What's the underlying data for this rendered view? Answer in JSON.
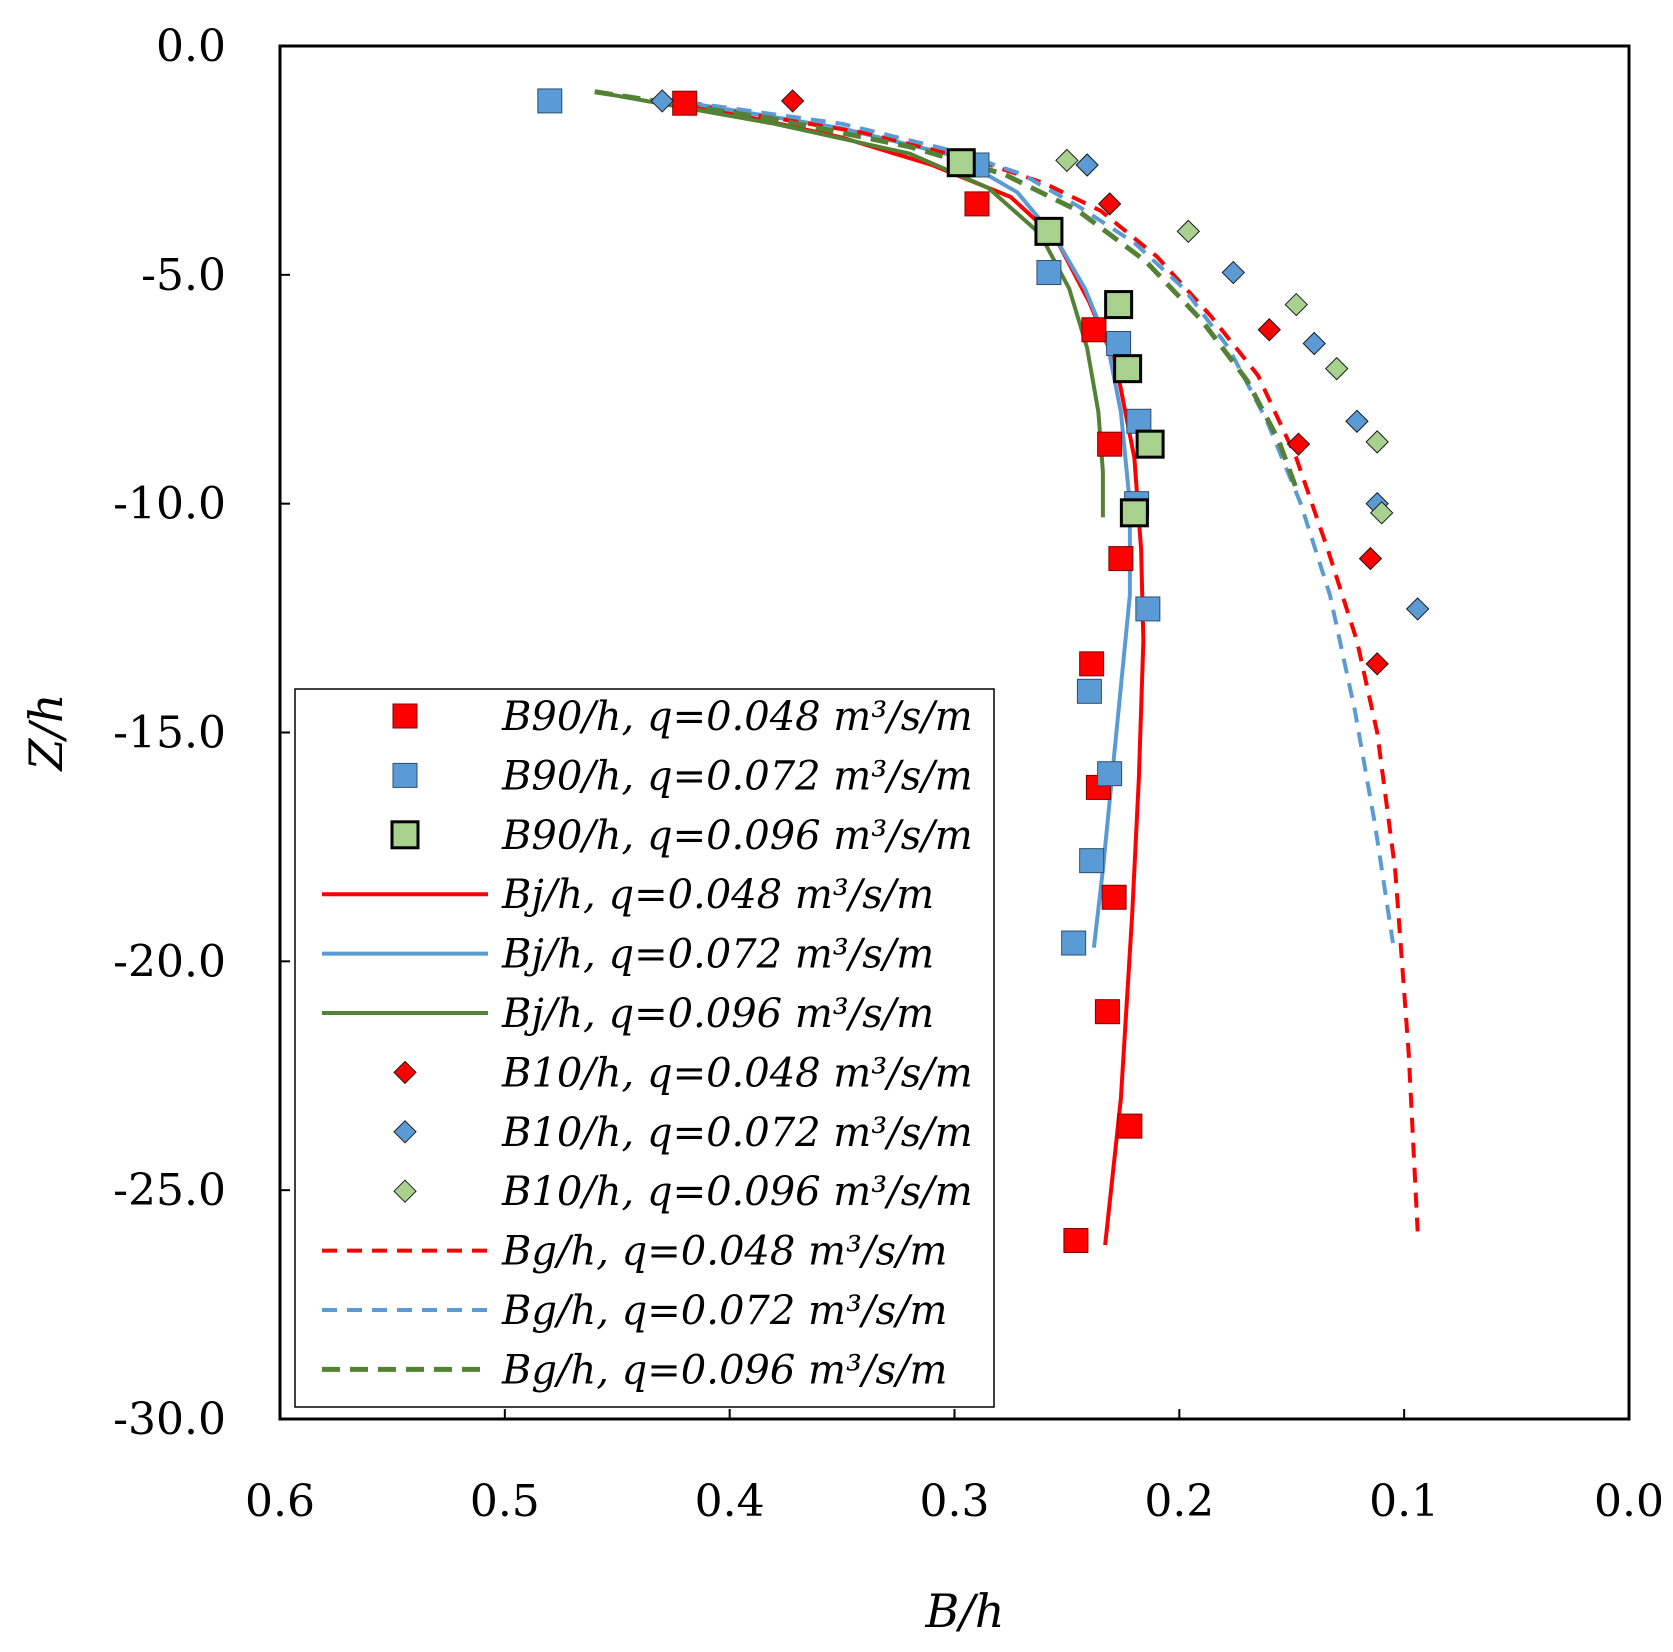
{
  "chart_data": {
    "type": "scatter",
    "title": "",
    "xlabel": "B/h",
    "ylabel": "Z/h",
    "xlim": [
      0.6,
      0.0
    ],
    "ylim": [
      -30.0,
      0.0
    ],
    "x_ticks": [
      "0.6",
      "0.5",
      "0.4",
      "0.3",
      "0.2",
      "0.1",
      "0.0"
    ],
    "y_ticks": [
      "0.0",
      "-5.0",
      "-10.0",
      "-15.0",
      "-20.0",
      "-25.0",
      "-30.0"
    ],
    "grid": false,
    "legend_position": "bottom-left",
    "colors": {
      "red": "#ff0000",
      "blue": "#5b9bd5",
      "green_marker": "#a9d18e",
      "green_line": "#548235",
      "axis": "#000000"
    },
    "series": [
      {
        "name": "B90/h, q=0.048 m³/s/m",
        "kind": "marker",
        "marker": "square",
        "color": "#ff0000",
        "stroke": "#7f0000",
        "x": [
          0.42,
          0.29,
          0.238,
          0.231,
          0.226,
          0.239,
          0.236,
          0.229,
          0.232,
          0.222,
          0.246
        ],
        "y": [
          -1.25,
          -3.45,
          -6.2,
          -8.7,
          -11.2,
          -13.5,
          -16.2,
          -18.6,
          -21.1,
          -23.6,
          -26.1
        ]
      },
      {
        "name": "B90/h, q=0.072 m³/s/m",
        "kind": "marker",
        "marker": "square",
        "color": "#5b9bd5",
        "stroke": "#2e4f6e",
        "x": [
          0.48,
          0.29,
          0.258,
          0.227,
          0.218,
          0.219,
          0.214,
          0.24,
          0.231,
          0.239,
          0.247
        ],
        "y": [
          -1.2,
          -2.6,
          -4.95,
          -6.5,
          -8.2,
          -10.0,
          -12.3,
          -14.1,
          -15.9,
          -17.8,
          -19.6
        ]
      },
      {
        "name": "B90/h, q=0.096 m³/s/m",
        "kind": "marker",
        "marker": "square-bold",
        "color": "#a9d18e",
        "stroke": "#000000",
        "x": [
          0.297,
          0.258,
          0.227,
          0.223,
          0.213,
          0.22
        ],
        "y": [
          -2.55,
          -4.05,
          -5.65,
          -7.05,
          -8.7,
          -10.2
        ]
      },
      {
        "name": "Bj/h, q=0.048 m³/s/m",
        "kind": "line",
        "style": "solid",
        "color": "#ff0000",
        "x": [
          0.42,
          0.35,
          0.31,
          0.275,
          0.255,
          0.24,
          0.228,
          0.22,
          0.217,
          0.216,
          0.218,
          0.221,
          0.226,
          0.233
        ],
        "y": [
          -1.25,
          -2.0,
          -2.6,
          -3.3,
          -4.2,
          -5.6,
          -7.0,
          -9.0,
          -11.0,
          -13.0,
          -16.0,
          -19.0,
          -23.0,
          -26.2
        ]
      },
      {
        "name": "Bj/h, q=0.072 m³/s/m",
        "kind": "line",
        "style": "solid",
        "color": "#5b9bd5",
        "x": [
          0.43,
          0.35,
          0.3,
          0.272,
          0.255,
          0.242,
          0.232,
          0.226,
          0.222,
          0.222,
          0.228,
          0.234,
          0.238
        ],
        "y": [
          -1.15,
          -1.8,
          -2.4,
          -3.2,
          -4.2,
          -5.3,
          -6.5,
          -8.0,
          -10.0,
          -12.0,
          -15.0,
          -18.0,
          -19.7
        ]
      },
      {
        "name": "Bj/h, q=0.096 m³/s/m",
        "kind": "line",
        "style": "solid",
        "color": "#548235",
        "x": [
          0.46,
          0.38,
          0.32,
          0.285,
          0.262,
          0.249,
          0.241,
          0.236,
          0.234,
          0.234
        ],
        "y": [
          -1.0,
          -1.7,
          -2.35,
          -3.1,
          -4.1,
          -5.3,
          -6.6,
          -8.0,
          -9.3,
          -10.3
        ]
      },
      {
        "name": "B10/h, q=0.048 m³/s/m",
        "kind": "marker",
        "marker": "diamond",
        "color": "#ff0000",
        "x": [
          0.372,
          0.231,
          0.16,
          0.147,
          0.115,
          0.112
        ],
        "y": [
          -1.2,
          -3.45,
          -6.2,
          -8.7,
          -11.2,
          -13.5
        ]
      },
      {
        "name": "B10/h, q=0.072 m³/s/m",
        "kind": "marker",
        "marker": "diamond",
        "color": "#5b9bd5",
        "x": [
          0.43,
          0.241,
          0.176,
          0.14,
          0.121,
          0.112,
          0.094
        ],
        "y": [
          -1.2,
          -2.6,
          -4.95,
          -6.5,
          -8.2,
          -10.0,
          -12.3
        ]
      },
      {
        "name": "B10/h, q=0.096 m³/s/m",
        "kind": "marker",
        "marker": "diamond",
        "color": "#a9d18e",
        "x": [
          0.25,
          0.196,
          0.148,
          0.13,
          0.112,
          0.11
        ],
        "y": [
          -2.5,
          -4.05,
          -5.65,
          -7.05,
          -8.65,
          -10.2
        ]
      },
      {
        "name": "Bg/h, q=0.048 m³/s/m",
        "kind": "line",
        "style": "dashed",
        "color": "#ff0000",
        "x": [
          0.42,
          0.34,
          0.29,
          0.26,
          0.235,
          0.21,
          0.186,
          0.165,
          0.148,
          0.134,
          0.121,
          0.112,
          0.104,
          0.098,
          0.094
        ],
        "y": [
          -1.25,
          -1.9,
          -2.5,
          -3.0,
          -3.6,
          -4.6,
          -5.9,
          -7.2,
          -9.0,
          -11.0,
          -13.0,
          -15.0,
          -18.0,
          -22.0,
          -25.9
        ]
      },
      {
        "name": "Bg/h, q=0.072 m³/s/m",
        "kind": "line",
        "style": "dashed",
        "color": "#5b9bd5",
        "x": [
          0.43,
          0.35,
          0.3,
          0.27,
          0.245,
          0.22,
          0.198,
          0.178,
          0.161,
          0.146,
          0.133,
          0.122,
          0.113,
          0.105
        ],
        "y": [
          -1.15,
          -1.7,
          -2.3,
          -2.8,
          -3.5,
          -4.3,
          -5.3,
          -6.6,
          -8.2,
          -10.0,
          -12.0,
          -14.5,
          -17.0,
          -19.6
        ]
      },
      {
        "name": "Bg/h, q=0.096 m³/s/m",
        "kind": "line",
        "style": "dashed-bold",
        "color": "#548235",
        "x": [
          0.46,
          0.38,
          0.32,
          0.278,
          0.245,
          0.215,
          0.19,
          0.17,
          0.156,
          0.147
        ],
        "y": [
          -1.0,
          -1.6,
          -2.2,
          -2.8,
          -3.6,
          -4.7,
          -6.0,
          -7.3,
          -8.6,
          -9.8
        ]
      }
    ]
  }
}
